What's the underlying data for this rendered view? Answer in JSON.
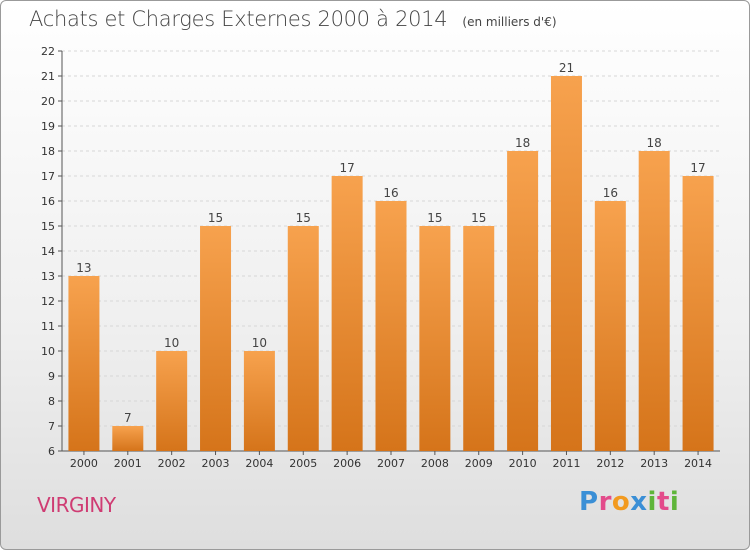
{
  "header": {
    "title": "Achats et Charges Externes 2000 à 2014",
    "subtitle": "(en milliers d'€)"
  },
  "footer": {
    "commune": "VIRGINY",
    "logo_letters": [
      "P",
      "r",
      "o",
      "x",
      "i",
      "t",
      "i"
    ],
    "logo_colors": [
      "#3a8fd6",
      "#e34b8a",
      "#f29a1f",
      "#3a8fd6",
      "#5fb53a",
      "#e34b8a",
      "#5fb53a"
    ]
  },
  "colors": {
    "bar_top": "#f7a24e",
    "bar_bottom": "#d5741a",
    "commune": "#cf3c73"
  },
  "chart_data": {
    "type": "bar",
    "title": "Achats et Charges Externes 2000 à 2014",
    "subtitle": "(en milliers d'€)",
    "categories": [
      "2000",
      "2001",
      "2002",
      "2003",
      "2004",
      "2005",
      "2006",
      "2007",
      "2008",
      "2009",
      "2010",
      "2011",
      "2012",
      "2013",
      "2014"
    ],
    "values": [
      13,
      7,
      10,
      15,
      10,
      15,
      17,
      16,
      15,
      15,
      18,
      21,
      16,
      18,
      17
    ],
    "ylim": [
      6,
      22
    ],
    "yticks": [
      6,
      7,
      8,
      9,
      10,
      11,
      12,
      13,
      14,
      15,
      16,
      17,
      18,
      19,
      20,
      21,
      22
    ],
    "grid": true,
    "legend": "none"
  }
}
